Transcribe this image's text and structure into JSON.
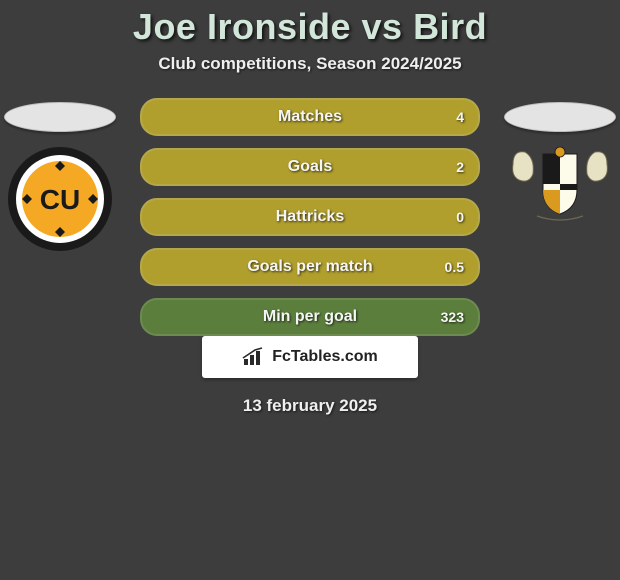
{
  "title": {
    "player1": "Joe Ironside",
    "vs": "vs",
    "player2": "Bird"
  },
  "subtitle": "Club competitions, Season 2024/2025",
  "date": "13 february 2025",
  "brand_text": "FcTables.com",
  "style": {
    "page_bg": "#3d3d3d",
    "title_color": "#d2e6da",
    "text_color": "#efefef",
    "row_bg": "#b09f2d",
    "row_green_bg": "#5b7e3d",
    "oval_bg": "#e4e4e4"
  },
  "rows": [
    {
      "label": "Matches",
      "left": "",
      "right": "4",
      "green": false
    },
    {
      "label": "Goals",
      "left": "",
      "right": "2",
      "green": false
    },
    {
      "label": "Hattricks",
      "left": "",
      "right": "0",
      "green": false
    },
    {
      "label": "Goals per match",
      "left": "",
      "right": "0.5",
      "green": false
    },
    {
      "label": "Min per goal",
      "left": "",
      "right": "323",
      "green": true
    }
  ],
  "crest_left": {
    "label": "CU",
    "ring_color": "#1a1a1a",
    "inner_color": "#f4a823",
    "text_color": "#1a1a1a"
  },
  "crest_right": {
    "bg": "#fdfbe9",
    "shield": "#1a1a1a",
    "accent": "#d99a1f"
  }
}
